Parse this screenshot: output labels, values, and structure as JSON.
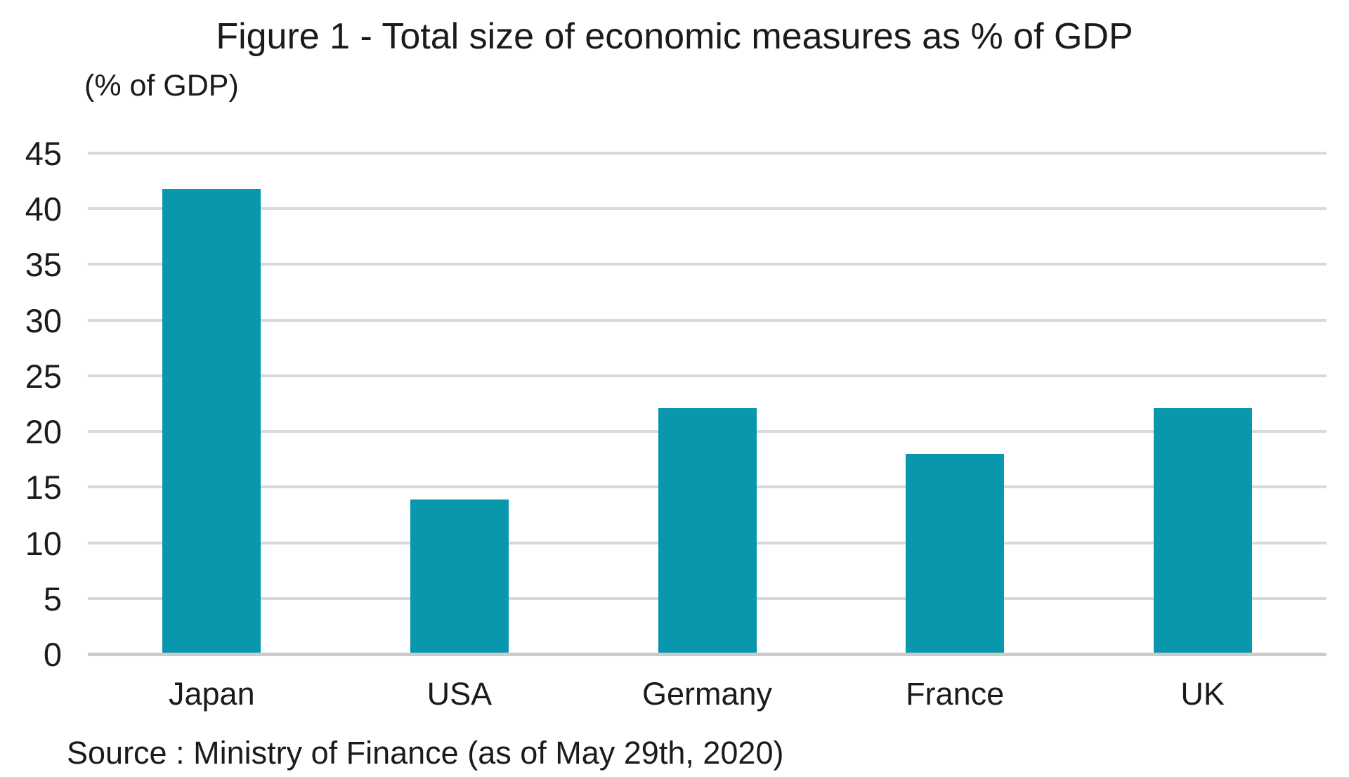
{
  "figure": {
    "title": "Figure 1 - Total size of economic measures as % of GDP",
    "y_axis_unit_label": "(% of GDP)",
    "source_note": "Source : Ministry of Finance (as of May 29th, 2020)"
  },
  "colors": {
    "bar": "#0897AC",
    "gridline": "#D9D9D9",
    "baseline": "#CBCBCB",
    "text": "#1B1B1B",
    "background": "#FFFFFF"
  },
  "chart_data": {
    "type": "bar",
    "title": "Figure 1 - Total size of economic measures as % of GDP",
    "categories": [
      "Japan",
      "USA",
      "Germany",
      "France",
      "UK"
    ],
    "values": [
      41.8,
      13.9,
      22.1,
      18,
      22.1
    ],
    "series_name": "Total size of economic measures (% of GDP)",
    "xlabel": "",
    "ylabel": "(% of GDP)",
    "ylim": [
      0,
      45
    ],
    "yticks": [
      0,
      5,
      10,
      15,
      20,
      25,
      30,
      35,
      40,
      45
    ],
    "grid": true,
    "gridline_orientation": "horizontal",
    "legend": false,
    "bar_color": "#0897AC",
    "source": "Source : Ministry of Finance (as of May 29th, 2020)"
  }
}
